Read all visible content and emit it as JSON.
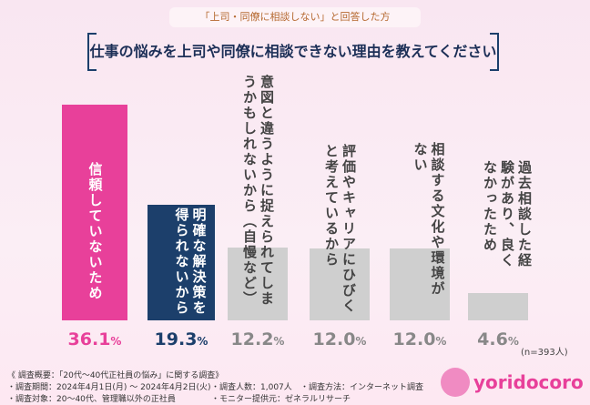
{
  "subtitle": "「上司・同僚に相談しない」と回答した方",
  "title": "仕事の悩みを上司や同僚に相談できない理由を教えてください",
  "chart_data": {
    "type": "bar",
    "categories": [
      "信頼していないため",
      "明確な解決策を得られないから",
      "意図と違うように捉えられてしまうかもしれないから（自慢など）",
      "評価やキャリアにひびくと考えているから",
      "相談する文化や環境がない",
      "過去相談した経験があり、良くなかったため"
    ],
    "values": [
      36.1,
      19.3,
      12.2,
      12.0,
      12.0,
      4.6
    ],
    "value_labels": [
      "36.1",
      "19.3",
      "12.2",
      "12.0",
      "12.0",
      "4.6"
    ],
    "unit": "%",
    "colors": [
      "#e8409a",
      "#1c3f6b",
      "#cfcfcf",
      "#cfcfcf",
      "#cfcfcf",
      "#cfcfcf"
    ],
    "pct_colors": [
      "#e8409a",
      "#1c3f6b",
      "#888888",
      "#888888",
      "#888888",
      "#888888"
    ],
    "note": "(n=393人)"
  },
  "footer": {
    "heading": "《 調査概要：「20代〜40代正社員の悩み」に関する調査》",
    "period": "・調査期間：2024年4月1日(月) 〜 2024年4月2日(火)",
    "count": "・調査人数：1,007人",
    "method": "・調査方法：インターネット調査",
    "target": "・調査対象：20〜40代、管理職以外の正社員",
    "provider": "・モニター提供元：ゼネラルリサーチ"
  },
  "logo": "yoridocoro"
}
